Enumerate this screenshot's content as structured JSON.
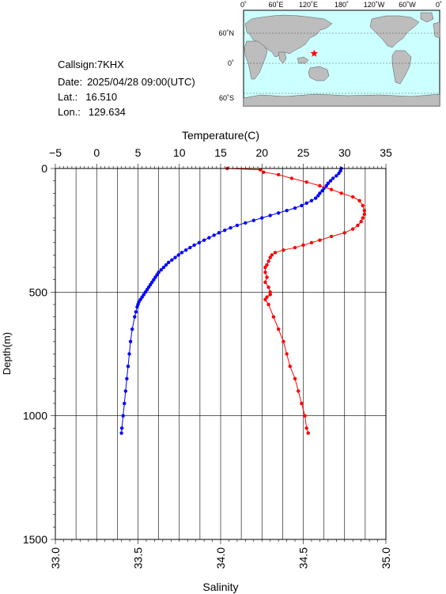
{
  "info": {
    "callsign_label": "Callsign:",
    "callsign": "7KHX",
    "date_label": "Date:",
    "date": "2025/04/28 09:00(UTC)",
    "lat_label": "Lat.:",
    "lat": "16.510",
    "lon_label": "Lon.:",
    "lon": "129.634"
  },
  "map": {
    "top_labels": [
      "0˚",
      "60˚E",
      "120˚E",
      "180˚",
      "120˚W",
      "60˚W",
      "0˚"
    ],
    "left_labels": [
      "60˚N",
      "0˚",
      "60˚S"
    ],
    "ocean_color": "#ccffff",
    "land_color": "#bdbdbd",
    "marker_icon": "star-icon",
    "marker_color": "#ff0000"
  },
  "chart_data": {
    "type": "line",
    "xlabel_top": "Temperature(C)",
    "xlabel_bottom": "Salinity",
    "ylabel": "Depth(m)",
    "temperature_ticks": [
      "−5",
      "0",
      "5",
      "10",
      "15",
      "20",
      "25",
      "30",
      "35"
    ],
    "salinity_ticks": [
      "33.0",
      "33.5",
      "34.0",
      "34.5",
      "35.0"
    ],
    "depth_ticks": [
      "0",
      "500",
      "1000",
      "1500"
    ],
    "temperature_range": [
      -5,
      35
    ],
    "salinity_range": [
      33.0,
      35.0
    ],
    "depth_range": [
      0,
      1500
    ],
    "grid": true,
    "series": [
      {
        "axis": "temperature",
        "color": "#0000ff",
        "points": [
          [
            0,
            29.6
          ],
          [
            10,
            29.5
          ],
          [
            20,
            29.3
          ],
          [
            30,
            29.0
          ],
          [
            40,
            28.6
          ],
          [
            50,
            28.3
          ],
          [
            60,
            28.0
          ],
          [
            70,
            27.8
          ],
          [
            80,
            27.5
          ],
          [
            90,
            27.3
          ],
          [
            100,
            27.0
          ],
          [
            110,
            26.8
          ],
          [
            120,
            26.5
          ],
          [
            130,
            26.0
          ],
          [
            140,
            25.4
          ],
          [
            150,
            24.8
          ],
          [
            160,
            24.0
          ],
          [
            170,
            23.0
          ],
          [
            180,
            22.0
          ],
          [
            190,
            21.0
          ],
          [
            200,
            20.0
          ],
          [
            210,
            19.0
          ],
          [
            220,
            18.0
          ],
          [
            230,
            17.0
          ],
          [
            240,
            16.2
          ],
          [
            250,
            15.5
          ],
          [
            260,
            14.8
          ],
          [
            270,
            14.2
          ],
          [
            280,
            13.6
          ],
          [
            290,
            13.0
          ],
          [
            300,
            12.4
          ],
          [
            310,
            11.8
          ],
          [
            320,
            11.3
          ],
          [
            330,
            10.8
          ],
          [
            340,
            10.3
          ],
          [
            350,
            9.9
          ],
          [
            360,
            9.5
          ],
          [
            370,
            9.1
          ],
          [
            380,
            8.7
          ],
          [
            390,
            8.4
          ],
          [
            400,
            8.1
          ],
          [
            410,
            7.8
          ],
          [
            420,
            7.5
          ],
          [
            430,
            7.3
          ],
          [
            440,
            7.1
          ],
          [
            450,
            6.9
          ],
          [
            460,
            6.7
          ],
          [
            470,
            6.5
          ],
          [
            480,
            6.3
          ],
          [
            490,
            6.1
          ],
          [
            500,
            5.9
          ],
          [
            510,
            5.7
          ],
          [
            520,
            5.5
          ],
          [
            530,
            5.3
          ],
          [
            540,
            5.1
          ],
          [
            550,
            5.0
          ],
          [
            560,
            4.9
          ],
          [
            580,
            4.75
          ],
          [
            600,
            4.6
          ],
          [
            650,
            4.3
          ],
          [
            700,
            4.1
          ],
          [
            750,
            3.95
          ],
          [
            800,
            3.8
          ],
          [
            850,
            3.65
          ],
          [
            900,
            3.5
          ],
          [
            950,
            3.35
          ],
          [
            1000,
            3.2
          ],
          [
            1050,
            3.05
          ],
          [
            1070,
            3.0
          ]
        ]
      },
      {
        "axis": "salinity",
        "color": "#ff0000",
        "points": [
          [
            0,
            34.04
          ],
          [
            5,
            34.24
          ],
          [
            15,
            34.26
          ],
          [
            25,
            34.35
          ],
          [
            40,
            34.43
          ],
          [
            55,
            34.52
          ],
          [
            70,
            34.6
          ],
          [
            85,
            34.67
          ],
          [
            100,
            34.73
          ],
          [
            115,
            34.8
          ],
          [
            130,
            34.84
          ],
          [
            150,
            34.86
          ],
          [
            170,
            34.87
          ],
          [
            185,
            34.87
          ],
          [
            200,
            34.86
          ],
          [
            215,
            34.85
          ],
          [
            230,
            34.83
          ],
          [
            245,
            34.8
          ],
          [
            260,
            34.75
          ],
          [
            275,
            34.67
          ],
          [
            290,
            34.6
          ],
          [
            300,
            34.55
          ],
          [
            310,
            34.5
          ],
          [
            320,
            34.45
          ],
          [
            330,
            34.38
          ],
          [
            340,
            34.33
          ],
          [
            350,
            34.31
          ],
          [
            360,
            34.3
          ],
          [
            375,
            34.29
          ],
          [
            390,
            34.28
          ],
          [
            400,
            34.27
          ],
          [
            420,
            34.27
          ],
          [
            440,
            34.28
          ],
          [
            460,
            34.27
          ],
          [
            480,
            34.29
          ],
          [
            500,
            34.3
          ],
          [
            510,
            34.3
          ],
          [
            520,
            34.28
          ],
          [
            530,
            34.27
          ],
          [
            550,
            34.29
          ],
          [
            600,
            34.32
          ],
          [
            650,
            34.35
          ],
          [
            700,
            34.38
          ],
          [
            750,
            34.4
          ],
          [
            800,
            34.42
          ],
          [
            850,
            34.45
          ],
          [
            900,
            34.47
          ],
          [
            950,
            34.49
          ],
          [
            1000,
            34.51
          ],
          [
            1050,
            34.52
          ],
          [
            1070,
            34.53
          ]
        ]
      }
    ]
  }
}
